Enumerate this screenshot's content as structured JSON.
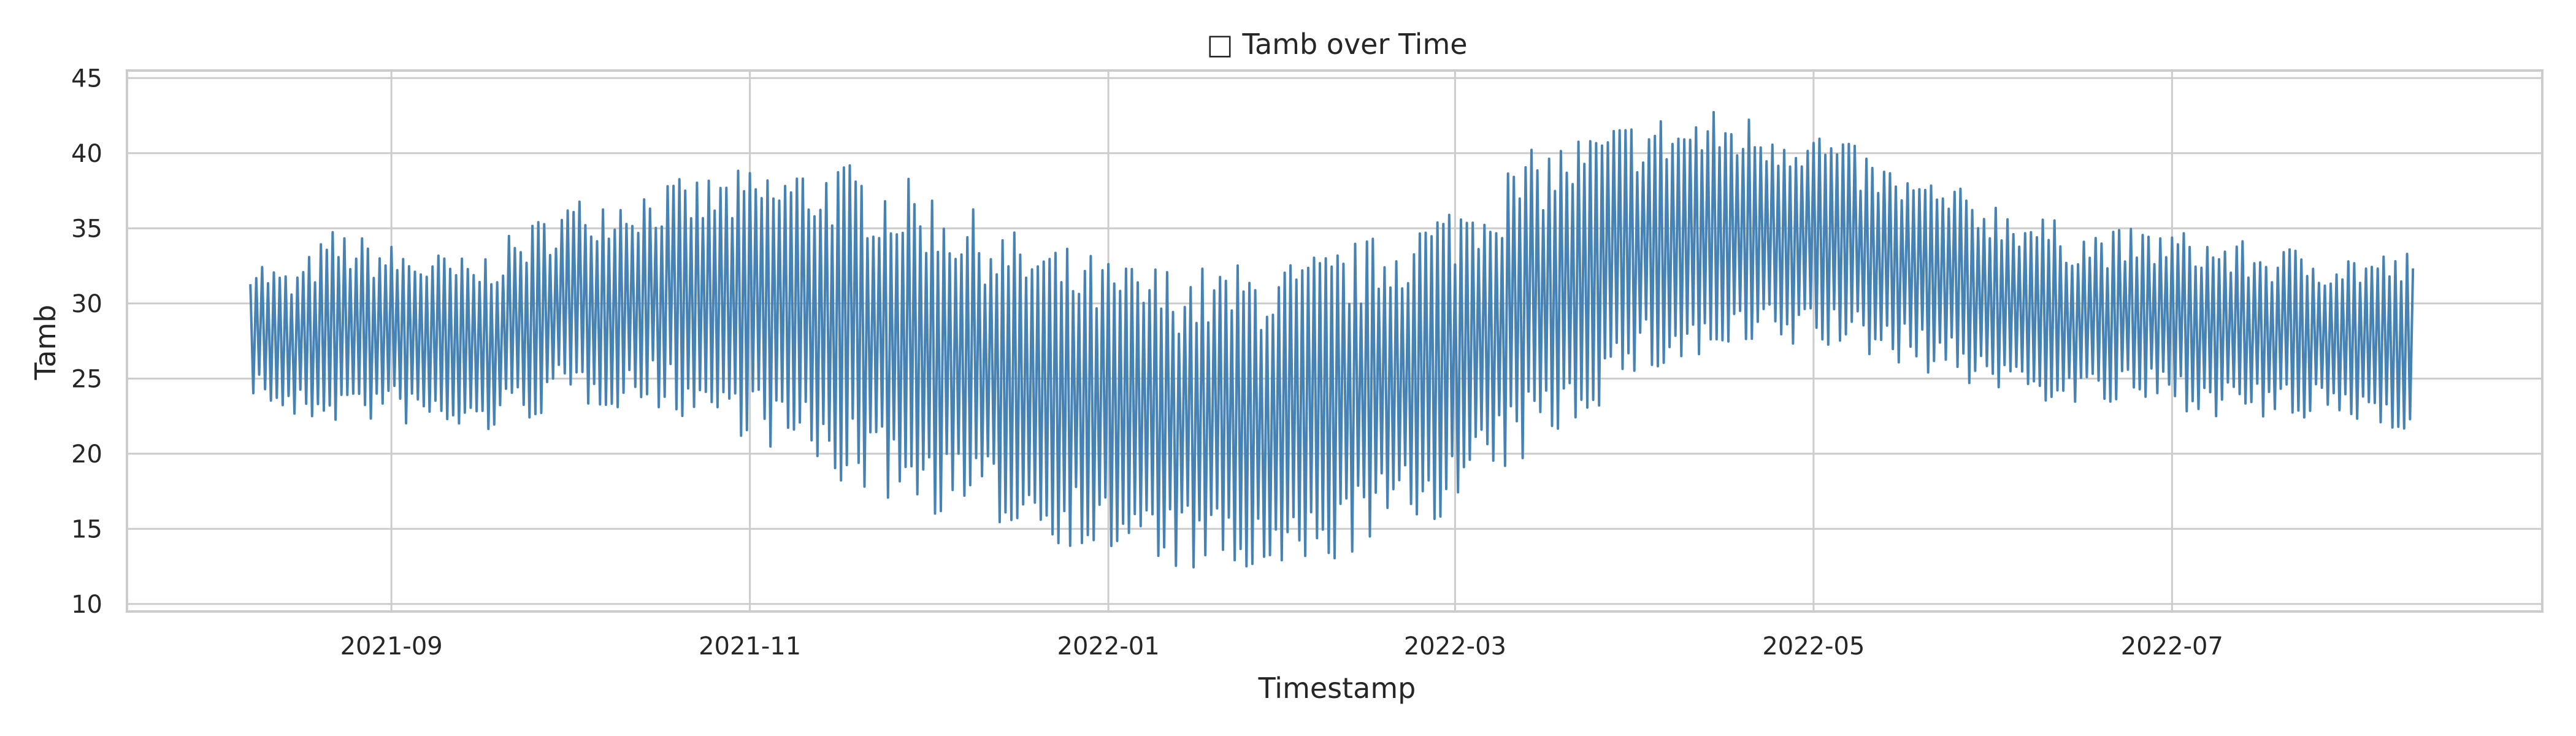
{
  "chart_data": {
    "type": "line",
    "title": "□ Tamb over Time",
    "xlabel": "Timestamp",
    "ylabel": "Tamb",
    "x_range": [
      "2021-07-18",
      "2022-09-02"
    ],
    "data_range": [
      "2021-08-08",
      "2022-08-11"
    ],
    "ylim": [
      9.5,
      45.5
    ],
    "x_ticks": [
      "2021-09",
      "2021-11",
      "2022-01",
      "2022-03",
      "2022-05",
      "2022-07"
    ],
    "y_ticks": [
      10,
      15,
      20,
      25,
      30,
      35,
      40,
      45
    ],
    "grid": true,
    "legend": "none",
    "line_color": "#4682b4",
    "series": [
      {
        "x": [
          "2021-08-08",
          "2021-08-15",
          "2021-08-22",
          "2021-09-01",
          "2021-09-15",
          "2021-10-01",
          "2021-10-15",
          "2021-11-01",
          "2021-11-15",
          "2021-12-01",
          "2021-12-15",
          "2022-01-01",
          "2022-01-15",
          "2022-02-01",
          "2022-02-15",
          "2022-03-01",
          "2022-03-15",
          "2022-04-01",
          "2022-04-15",
          "2022-05-01",
          "2022-05-15",
          "2022-06-01",
          "2022-06-15",
          "2022-07-01",
          "2022-07-15",
          "2022-08-01",
          "2022-08-11"
        ],
        "daily_max": [
          33.4,
          32,
          35,
          34,
          33,
          37,
          38,
          39,
          39.7,
          38,
          35,
          33,
          32.5,
          33,
          34.5,
          37,
          40.5,
          42.5,
          43,
          42,
          39,
          37,
          35,
          35,
          34,
          33.5,
          33.5
        ],
        "daily_min": [
          24,
          22,
          22,
          22,
          21,
          23,
          23,
          21,
          18,
          16,
          15,
          13,
          12,
          11,
          14,
          16,
          20,
          25,
          26,
          27,
          26,
          24,
          23,
          23,
          22,
          22,
          21.5
        ]
      }
    ]
  }
}
